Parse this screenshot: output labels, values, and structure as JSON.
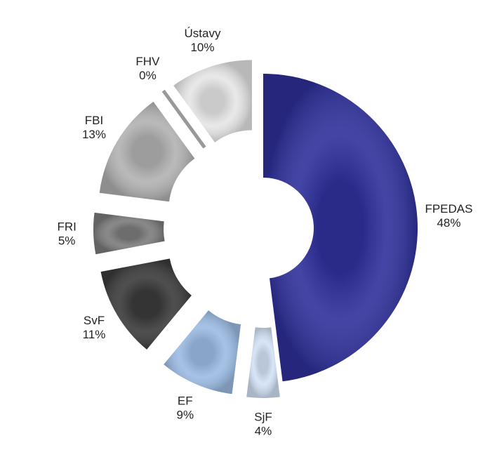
{
  "chart_data": {
    "type": "donut",
    "categories": [
      "FPEDAS",
      "SjF",
      "EF",
      "SvF",
      "FRI",
      "FBI",
      "FHV",
      "Ústavy"
    ],
    "values": [
      48,
      4,
      9,
      11,
      5,
      13,
      0,
      10
    ],
    "value_labels": [
      "48%",
      "4%",
      "9%",
      "11%",
      "5%",
      "13%",
      "0%",
      "10%"
    ],
    "colors": [
      "#2f309c",
      "#d2e2f6",
      "#9cbce4",
      "#3b3b3b",
      "#7c7c7c",
      "#b2b2b2",
      "#999999",
      "#e6e6e6"
    ]
  }
}
